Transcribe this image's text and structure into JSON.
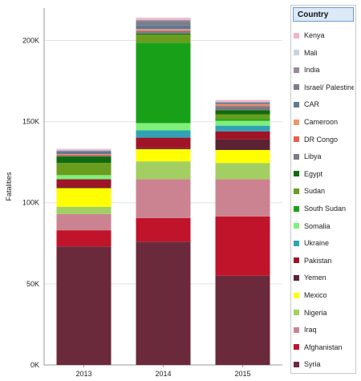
{
  "chart_data": {
    "type": "bar",
    "stacked": true,
    "title": "",
    "xlabel": "",
    "ylabel": "Fatalities",
    "ylim": [
      0,
      220000
    ],
    "yticks": [
      0,
      50000,
      100000,
      150000,
      200000
    ],
    "ytick_labels": [
      "0K",
      "50K",
      "100K",
      "150K",
      "200K"
    ],
    "categories": [
      "2013",
      "2014",
      "2015"
    ],
    "legend_title": "Country",
    "legend_position": "right",
    "series": [
      {
        "name": "Syria",
        "color": "#6b2a3c",
        "values": [
          73000,
          76000,
          55000
        ]
      },
      {
        "name": "Afghanistan",
        "color": "#c0142a",
        "values": [
          10000,
          14500,
          36500
        ]
      },
      {
        "name": "Iraq",
        "color": "#cc8391",
        "values": [
          10000,
          24000,
          23000
        ]
      },
      {
        "name": "Nigeria",
        "color": "#a3cf62",
        "values": [
          4500,
          11000,
          10000
        ]
      },
      {
        "name": "Mexico",
        "color": "#ffff00",
        "values": [
          11500,
          7500,
          8000
        ]
      },
      {
        "name": "Yemen",
        "color": "#5a2333",
        "values": [
          500,
          600,
          6500
        ]
      },
      {
        "name": "Pakistan",
        "color": "#a01427",
        "values": [
          5000,
          6500,
          5000
        ]
      },
      {
        "name": "Ukraine",
        "color": "#2fa3b5",
        "values": [
          0,
          4500,
          3500
        ]
      },
      {
        "name": "Somalia",
        "color": "#7ef07a",
        "values": [
          2500,
          4500,
          3000
        ]
      },
      {
        "name": "South Sudan",
        "color": "#18a118",
        "values": [
          0,
          49500,
          1000
        ]
      },
      {
        "name": "Sudan",
        "color": "#6a9d1d",
        "values": [
          7500,
          5000,
          3000
        ]
      },
      {
        "name": "Egypt",
        "color": "#0f6b0f",
        "values": [
          4000,
          700,
          2500
        ]
      },
      {
        "name": "Libya",
        "color": "#7b7b84",
        "values": [
          500,
          1500,
          2500
        ]
      },
      {
        "name": "DR Congo",
        "color": "#e85f4f",
        "values": [
          700,
          500,
          500
        ]
      },
      {
        "name": "Cameroon",
        "color": "#f0966b",
        "values": [
          300,
          700,
          700
        ]
      },
      {
        "name": "CAR",
        "color": "#5f7896",
        "values": [
          1500,
          2500,
          700
        ]
      },
      {
        "name": "Israel/ Palestine",
        "color": "#7d7d87",
        "values": [
          200,
          2500,
          200
        ]
      },
      {
        "name": "India",
        "color": "#9a8a9a",
        "values": [
          500,
          600,
          500
        ]
      },
      {
        "name": "Mali",
        "color": "#c7d4de",
        "values": [
          500,
          300,
          200
        ]
      },
      {
        "name": "Kenya",
        "color": "#f0b3c8",
        "values": [
          500,
          1100,
          1000
        ]
      }
    ],
    "legend_order": [
      "Kenya",
      "Mali",
      "India",
      "Israel/ Palestine",
      "CAR",
      "Cameroon",
      "DR Congo",
      "Libya",
      "Egypt",
      "Sudan",
      "South Sudan",
      "Somalia",
      "Ukraine",
      "Pakistan",
      "Yemen",
      "Mexico",
      "Nigeria",
      "Iraq",
      "Afghanistan",
      "Syria"
    ]
  }
}
